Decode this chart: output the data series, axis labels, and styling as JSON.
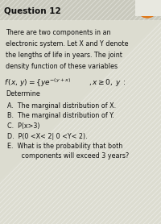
{
  "title": "Question 12",
  "bg_color": "#dcdcd0",
  "header_bg": "#c8c8bc",
  "title_color": "#111111",
  "body_lines": [
    "There are two components in an",
    "electronic system. Let X and Y denote",
    "the lengths of life in years. The joint",
    "density function of these variables"
  ],
  "determine": "Determine",
  "items": [
    "A.  The marginal distribution of X.",
    "B.  The marginal distribution of Y.",
    "C.  P(x>3)",
    "D.  P(0 <X< 2| 0 <Y< 2).",
    "E.  What is the probability that both",
    "       components will exceed 3 years?"
  ],
  "title_fontsize": 7.5,
  "body_fontsize": 5.8,
  "formula_fontsize": 6.5,
  "item_fontsize": 5.8,
  "orange_color": "#e07818"
}
